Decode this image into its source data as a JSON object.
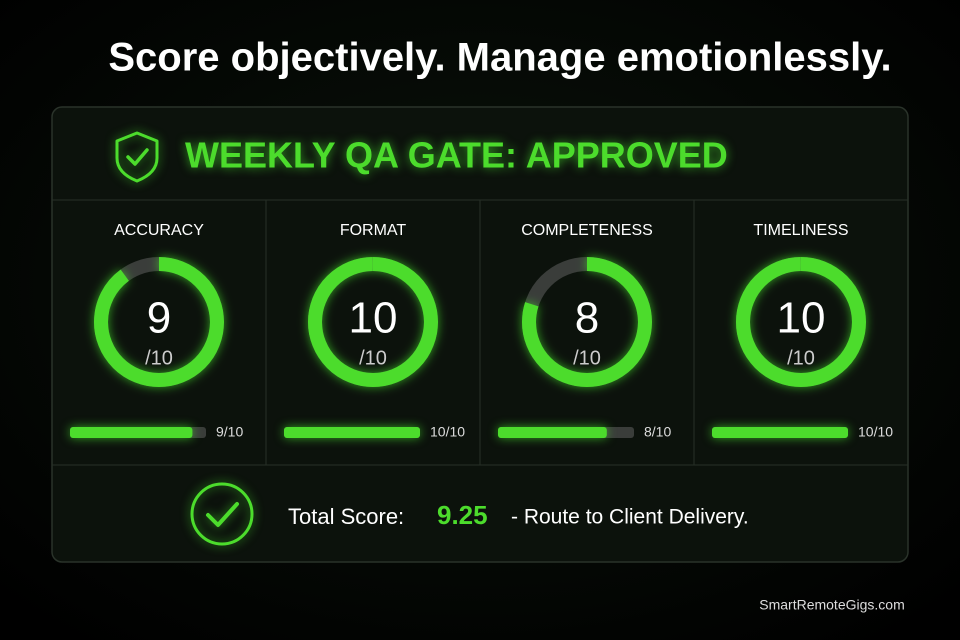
{
  "header": {
    "title": "Score objectively. Manage emotionlessly."
  },
  "gate": {
    "title": "WEEKLY QA GATE: APPROVED"
  },
  "metrics": [
    {
      "label": "ACCURACY",
      "score": 9,
      "out_of": {
        "value": 10,
        "label": "/10"
      },
      "bar_label": "9/10"
    },
    {
      "label": "FORMAT",
      "score": 10,
      "out_of": {
        "value": 10,
        "label": "/10"
      },
      "bar_label": "10/10"
    },
    {
      "label": "COMPLETENESS",
      "score": 8,
      "out_of": {
        "value": 10,
        "label": "/10"
      },
      "bar_label": "8/10"
    },
    {
      "label": "TIMELINESS",
      "score": 10,
      "out_of": {
        "value": 10,
        "label": "/10"
      },
      "bar_label": "10/10"
    }
  ],
  "total": {
    "label": "Total Score:",
    "value": 9.25,
    "note": "- Route to Client Delivery."
  },
  "footer": {
    "site": "SmartRemoteGigs.com"
  }
}
